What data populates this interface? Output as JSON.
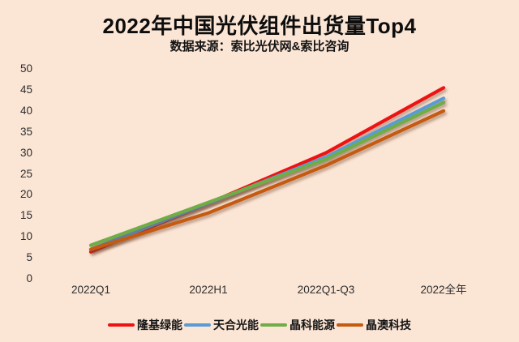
{
  "title": "2022年中国光伏组件出货量Top4",
  "subtitle": "数据来源：索比光伏网&索比咨询",
  "colors": {
    "background": "#fbe5d5",
    "title_text": "#0d0d0d",
    "axis_text": "#2e2e2e"
  },
  "chart_data": {
    "type": "line",
    "title": "2022年中国光伏组件出货量Top4",
    "subtitle": "数据来源：索比光伏网&索比咨询",
    "categories": [
      "2022Q1",
      "2022H1",
      "2022Q1-Q3",
      "2022全年"
    ],
    "series": [
      {
        "name": "隆基绿能",
        "color": "#ee1212",
        "values": [
          6.4,
          18.0,
          30.0,
          45.5
        ]
      },
      {
        "name": "天合光能",
        "color": "#5b9bd5",
        "values": [
          7.0,
          18.0,
          29.0,
          43.0
        ]
      },
      {
        "name": "晶科能源",
        "color": "#70ad47",
        "values": [
          8.0,
          18.2,
          28.5,
          42.0
        ]
      },
      {
        "name": "晶澳科技",
        "color": "#c55a11",
        "values": [
          7.0,
          15.7,
          27.0,
          40.0
        ]
      }
    ],
    "xlabel": "",
    "ylabel": "",
    "ylim": [
      0,
      50
    ],
    "yticks": [
      50,
      45,
      40,
      35,
      30,
      25,
      20,
      15,
      10,
      5,
      0
    ],
    "grid": false,
    "axis_lines": false,
    "legend_position": "bottom"
  }
}
